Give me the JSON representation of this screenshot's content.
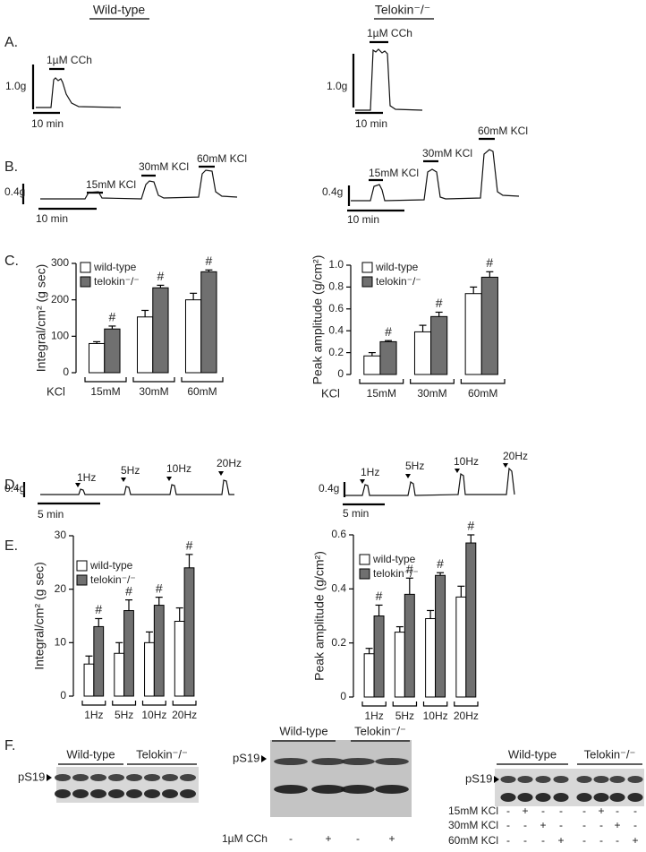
{
  "headings": [
    "Wild-type",
    "Telokin⁻/⁻"
  ],
  "panels": [
    "A.",
    "B.",
    "C.",
    "D.",
    "E.",
    "F."
  ],
  "traces": [
    [
      {
        "scale": "1.0g",
        "time": "10 min",
        "stimuli": [
          "1µM CCh"
        ]
      },
      {
        "scale": "1.0g",
        "time": "10 min",
        "stimuli": [
          "1µM CCh"
        ]
      }
    ],
    [
      {
        "scale": "0.4g",
        "time": "10 min",
        "stimuli": [
          "15mM KCl",
          "30mM KCl",
          "60mM KCl"
        ]
      },
      {
        "scale": "0.4g",
        "time": "10 min",
        "stimuli": [
          "15mM KCl",
          "30mM KCl",
          "60mM KCl"
        ]
      }
    ],
    [
      {
        "scale": "0.4g",
        "time": "5 min",
        "stimuli": [
          "1Hz",
          "5Hz",
          "10Hz",
          "20Hz"
        ]
      },
      {
        "scale": "0.4g",
        "time": "5 min",
        "stimuli": [
          "1Hz",
          "5Hz",
          "10Hz",
          "20Hz"
        ]
      }
    ]
  ],
  "chart_data": [
    {
      "type": "bar",
      "y_label": "Integral/cm² (g sec)",
      "x_prefix": "KCl",
      "categories": [
        "15mM",
        "30mM",
        "60mM"
      ],
      "series": [
        {
          "name": "wild-type",
          "color": "#ffffff",
          "values": [
            80,
            153,
            200
          ],
          "errors": [
            5,
            18,
            18
          ]
        },
        {
          "name": "telokin⁻/⁻",
          "color": "#707070",
          "values": [
            120,
            233,
            277
          ],
          "errors": [
            8,
            7,
            5
          ],
          "annotations": [
            "#",
            "#",
            "#"
          ]
        }
      ],
      "ylim": [
        0,
        300
      ],
      "yticks": [
        0,
        100,
        200,
        300
      ]
    },
    {
      "type": "bar",
      "y_label": "Peak amplitude (g/cm²)",
      "x_prefix": "KCl",
      "categories": [
        "15mM",
        "30mM",
        "60mM"
      ],
      "series": [
        {
          "name": "wild-type",
          "color": "#ffffff",
          "values": [
            0.17,
            0.39,
            0.74
          ],
          "errors": [
            0.03,
            0.06,
            0.06
          ]
        },
        {
          "name": "telokin⁻/⁻",
          "color": "#707070",
          "values": [
            0.3,
            0.53,
            0.89
          ],
          "errors": [
            0.01,
            0.04,
            0.05
          ],
          "annotations": [
            "#",
            "#",
            "#"
          ]
        }
      ],
      "ylim": [
        0,
        1
      ],
      "yticks": [
        0,
        0.2,
        0.4,
        0.6,
        0.8,
        {
          "value": 1,
          "label": "1.0"
        }
      ]
    },
    {
      "type": "bar",
      "y_label": "Integral/cm² (g sec)",
      "categories": [
        "1Hz",
        "5Hz",
        "10Hz",
        "20Hz"
      ],
      "series": [
        {
          "name": "wild-type",
          "color": "#ffffff",
          "values": [
            6,
            8,
            10,
            14
          ],
          "errors": [
            1.5,
            2,
            2,
            2.5
          ]
        },
        {
          "name": "telokin⁻/⁻",
          "color": "#707070",
          "values": [
            13,
            16,
            17,
            24
          ],
          "errors": [
            1.5,
            2,
            1.5,
            2.5
          ],
          "annotations": [
            "#",
            "#",
            "#",
            "#"
          ]
        }
      ],
      "ylim": [
        0,
        30
      ],
      "yticks": [
        0,
        10,
        20,
        30
      ]
    },
    {
      "type": "bar",
      "y_label": "Peak amplitude (g/cm²)",
      "categories": [
        "1Hz",
        "5Hz",
        "10Hz",
        "20Hz"
      ],
      "series": [
        {
          "name": "wild-type",
          "color": "#ffffff",
          "values": [
            0.16,
            0.24,
            0.29,
            0.37
          ],
          "errors": [
            0.02,
            0.02,
            0.03,
            0.04
          ]
        },
        {
          "name": "telokin⁻/⁻",
          "color": "#707070",
          "values": [
            0.3,
            0.38,
            0.45,
            0.57
          ],
          "errors": [
            0.04,
            0.06,
            0.01,
            0.03
          ],
          "annotations": [
            "#",
            "#",
            "#",
            "#"
          ]
        }
      ],
      "ylim": [
        0,
        0.6
      ],
      "yticks": [
        0,
        0.2,
        0.4,
        0.6
      ]
    }
  ],
  "blots": [
    {
      "groups": [
        "Wild-type",
        "Telokin⁻/⁻"
      ],
      "label": "pS19",
      "rows": []
    },
    {
      "groups": [
        "Wild-type",
        "Telokin⁻/⁻"
      ],
      "label": "pS19",
      "rows": [
        {
          "name": "1µM CCh",
          "signs": [
            "-",
            "+",
            "-",
            "+"
          ]
        }
      ]
    },
    {
      "groups": [
        "Wild-type",
        "Telokin⁻/⁻"
      ],
      "label": "pS19",
      "rows": [
        {
          "name": "15mM KCl",
          "signs": [
            "-",
            "+",
            "-",
            "-",
            "-",
            "+",
            "-",
            "-"
          ]
        },
        {
          "name": "30mM KCl",
          "signs": [
            "-",
            "-",
            "+",
            "-",
            "-",
            "-",
            "+",
            "-"
          ]
        },
        {
          "name": "60mM KCl",
          "signs": [
            "-",
            "-",
            "-",
            "+",
            "-",
            "-",
            "-",
            "+"
          ]
        }
      ]
    }
  ]
}
